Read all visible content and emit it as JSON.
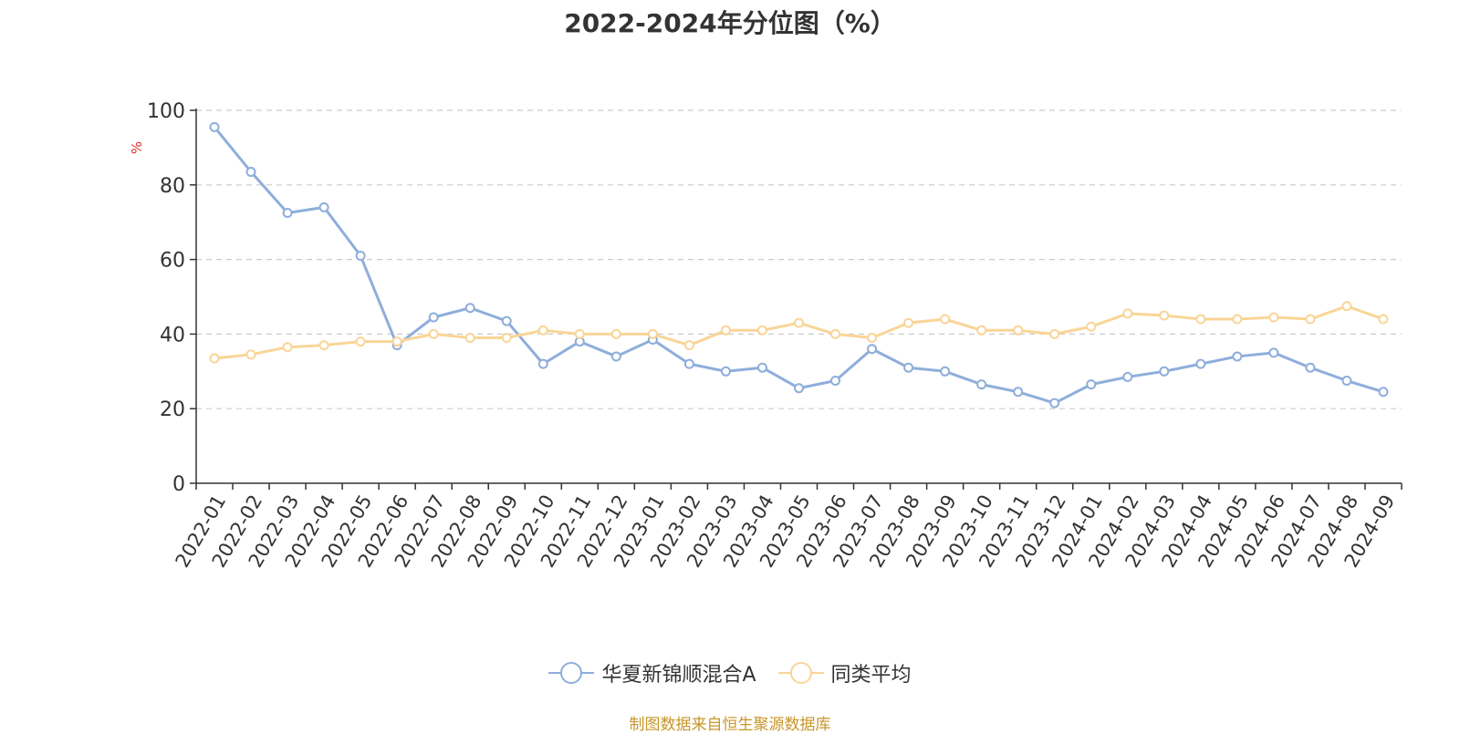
{
  "chart_data": {
    "type": "line",
    "title": "2022-2024年分位图（%）",
    "ylabel": "%",
    "ylim": [
      0,
      100
    ],
    "yticks": [
      0,
      20,
      40,
      60,
      80,
      100
    ],
    "grid": true,
    "legend_position": "bottom",
    "categories": [
      "2022-01",
      "2022-02",
      "2022-03",
      "2022-04",
      "2022-05",
      "2022-06",
      "2022-07",
      "2022-08",
      "2022-09",
      "2022-10",
      "2022-11",
      "2022-12",
      "2023-01",
      "2023-02",
      "2023-03",
      "2023-04",
      "2023-05",
      "2023-06",
      "2023-07",
      "2023-08",
      "2023-09",
      "2023-10",
      "2023-11",
      "2023-12",
      "2024-01",
      "2024-02",
      "2024-03",
      "2024-04",
      "2024-05",
      "2024-06",
      "2024-07",
      "2024-08",
      "2024-09"
    ],
    "series": [
      {
        "name": "华夏新锦顺混合A",
        "color": "#8eaedb",
        "values": [
          95.5,
          83.5,
          72.5,
          74.0,
          61.0,
          37.0,
          44.5,
          47.0,
          43.5,
          32.0,
          38.0,
          34.0,
          38.5,
          32.0,
          30.0,
          31.0,
          25.5,
          27.5,
          36.0,
          31.0,
          30.0,
          26.5,
          24.5,
          21.5,
          26.5,
          28.5,
          30.0,
          32.0,
          34.0,
          35.0,
          31.0,
          27.5,
          24.5
        ]
      },
      {
        "name": "同类平均",
        "color": "#f9d597",
        "values": [
          33.5,
          34.5,
          36.5,
          37.0,
          38.0,
          38.0,
          40.0,
          39.0,
          39.0,
          41.0,
          40.0,
          40.0,
          40.0,
          37.0,
          41.0,
          41.0,
          43.0,
          40.0,
          39.0,
          43.0,
          44.0,
          41.0,
          41.0,
          40.0,
          42.0,
          45.5,
          45.0,
          44.0,
          44.0,
          44.5,
          44.0,
          47.5,
          44.0
        ]
      }
    ]
  },
  "source_note": "制图数据来自恒生聚源数据库",
  "colors": {
    "title": "#333333",
    "axis": "#333333",
    "grid": "#cccccc",
    "ylabel": "#e03030",
    "source_note": "#c8962a"
  }
}
